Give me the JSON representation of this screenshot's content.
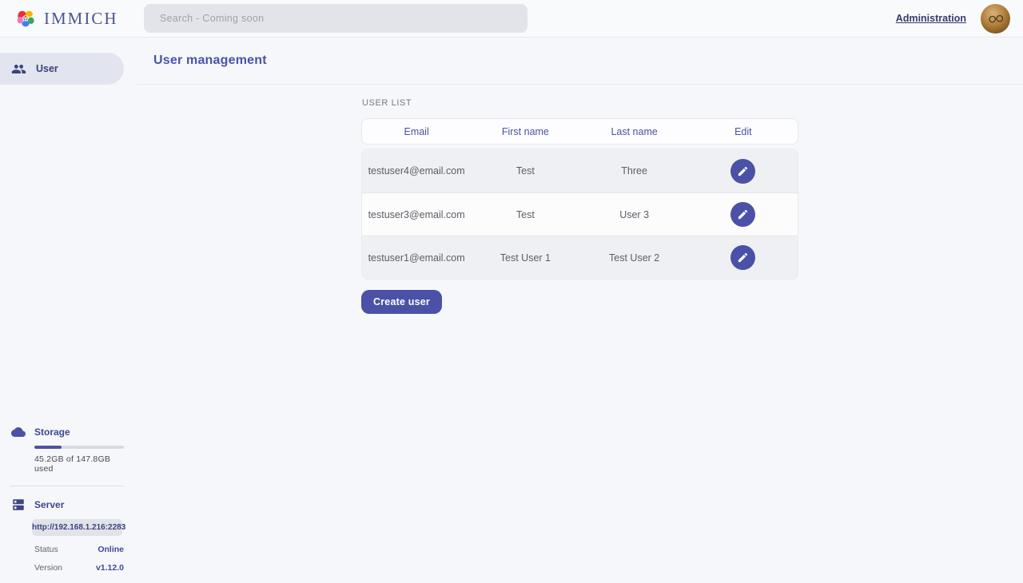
{
  "app": {
    "name": "IMMICH"
  },
  "navbar": {
    "search_placeholder": "Search - Coming soon",
    "admin_link": "Administration"
  },
  "sidebar": {
    "items": [
      {
        "label": "User",
        "icon": "people-icon",
        "active": true
      }
    ],
    "storage": {
      "title": "Storage",
      "icon": "cloud-icon",
      "usage_text": "45.2GB of 147.8GB used",
      "percent_used": 30.6
    },
    "server": {
      "title": "Server",
      "icon": "server-icon",
      "url": "http://192.168.1.216:2283",
      "rows": [
        {
          "label": "Status",
          "value": "Online"
        },
        {
          "label": "Version",
          "value": "v1.12.0"
        }
      ]
    }
  },
  "main": {
    "title": "User management",
    "section_label": "USER LIST",
    "table": {
      "columns": [
        "Email",
        "First name",
        "Last name",
        "Edit"
      ],
      "rows": [
        {
          "email": "testuser4@email.com",
          "first_name": "Test",
          "last_name": "Three"
        },
        {
          "email": "testuser3@email.com",
          "first_name": "Test",
          "last_name": "User 3"
        },
        {
          "email": "testuser1@email.com",
          "first_name": "Test User 1",
          "last_name": "Test User 2"
        }
      ],
      "row_action_icon": "edit-pencil-icon"
    },
    "create_button": "Create user"
  },
  "icons": {
    "logo": "immich-flower-logo",
    "avatar": "user-profile-photo-glasses"
  },
  "colors": {
    "primary": "#4a51a6",
    "heading_text": "#4a52a6",
    "sidebar_active_bg": "#e2e4f0",
    "navbar_bg": "#f9fafc",
    "page_bg": "#f6f7fa",
    "row_stripe": "#eff0f3",
    "search_bg": "#e3e4e9",
    "logo_petals": [
      "#e3342f",
      "#f5b400",
      "#3aa757",
      "#3f7cf6",
      "#ed79b5"
    ]
  }
}
